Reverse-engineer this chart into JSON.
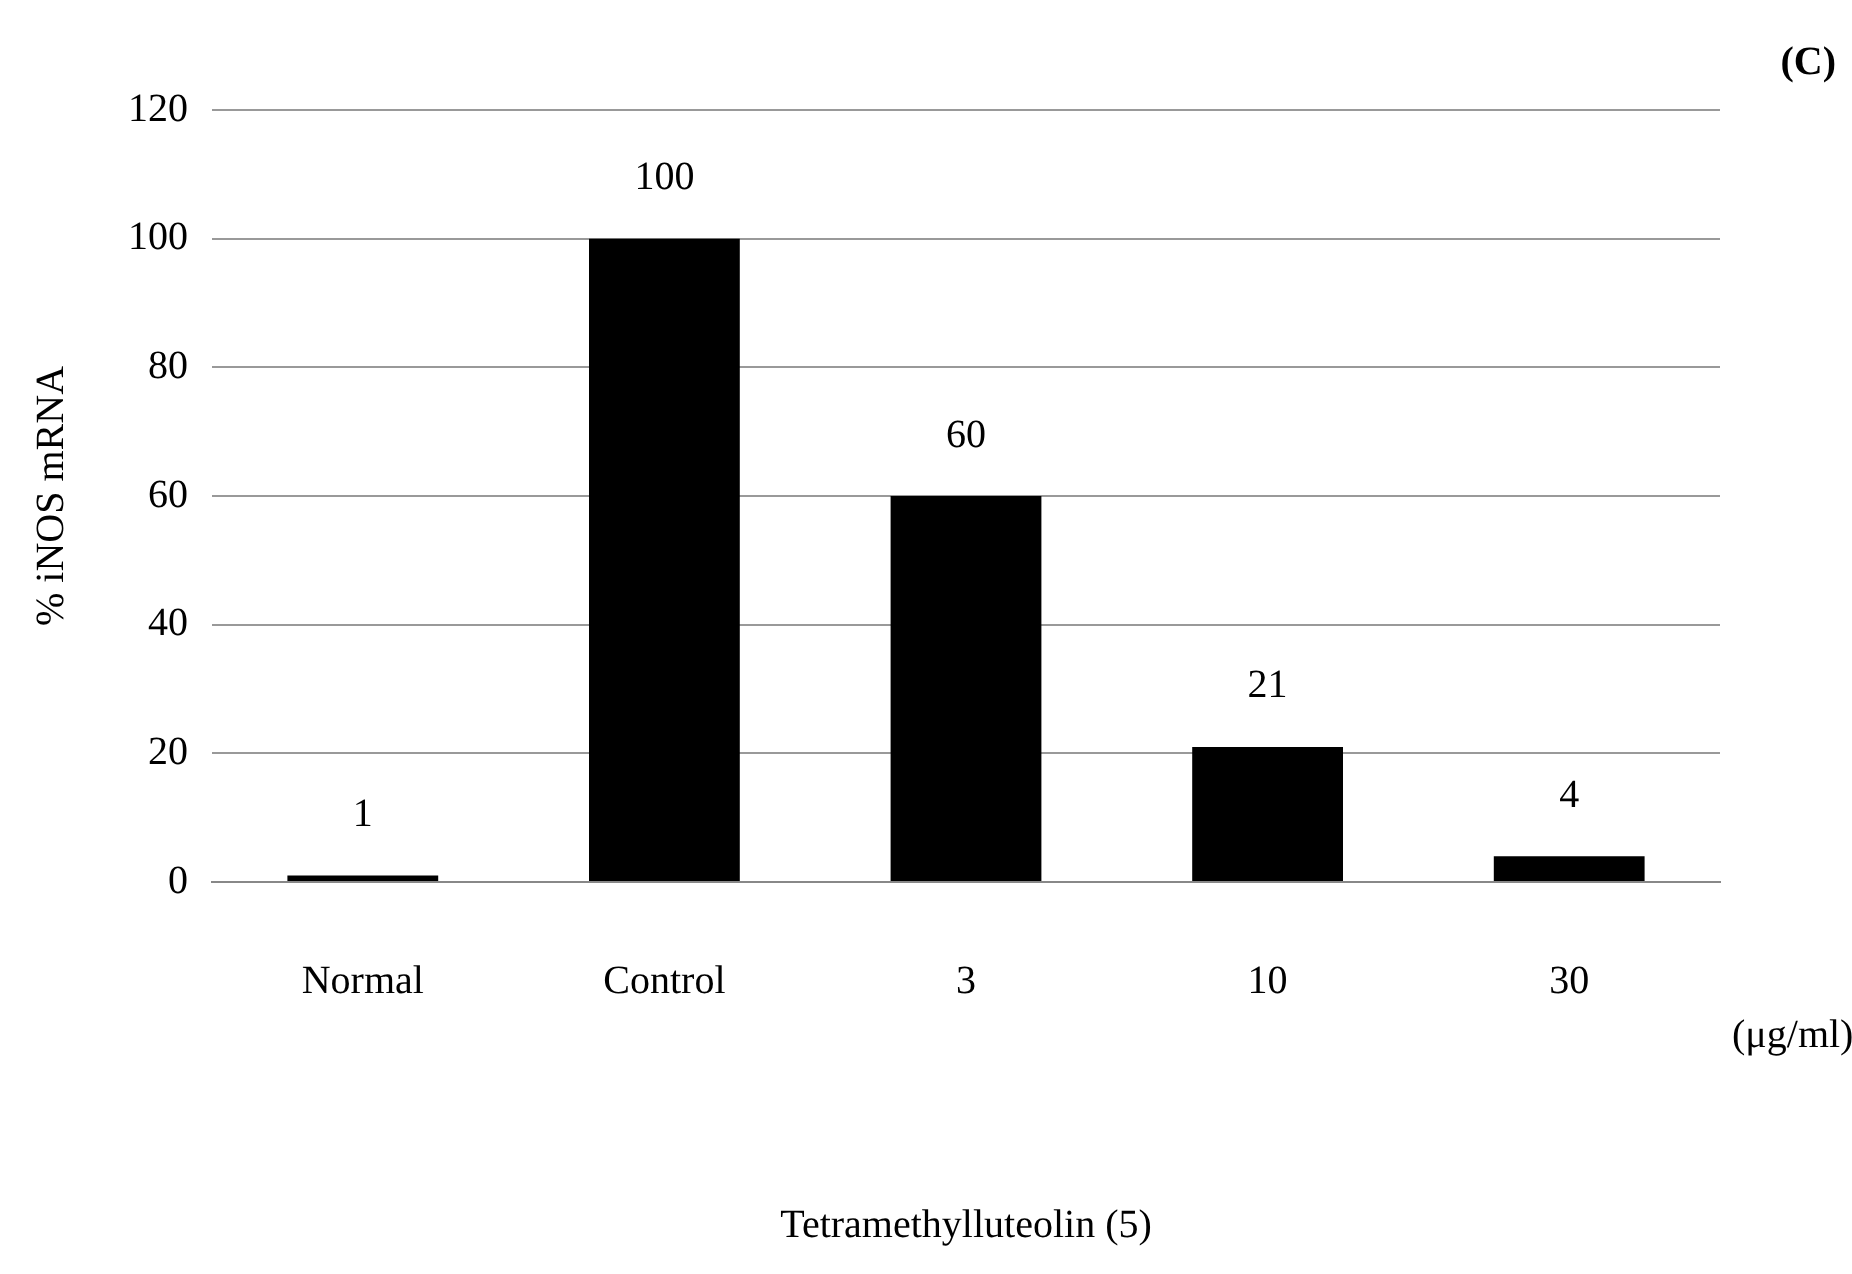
{
  "chart_data": {
    "type": "bar",
    "xlabel": "Tetramethylluteolin (5)",
    "ylabel": "% iNOS mRNA",
    "categories": [
      "Normal",
      "Control",
      "3",
      "10",
      "30"
    ],
    "values": [
      1,
      100,
      60,
      21,
      4
    ],
    "color": "#000000",
    "ylim": [
      0,
      120
    ],
    "yticks": [
      0,
      20,
      40,
      60,
      80,
      100,
      120
    ],
    "grid": "y",
    "legend": false,
    "data_labels": true,
    "annotations": [
      "(C)",
      "(μg/ml)"
    ]
  }
}
